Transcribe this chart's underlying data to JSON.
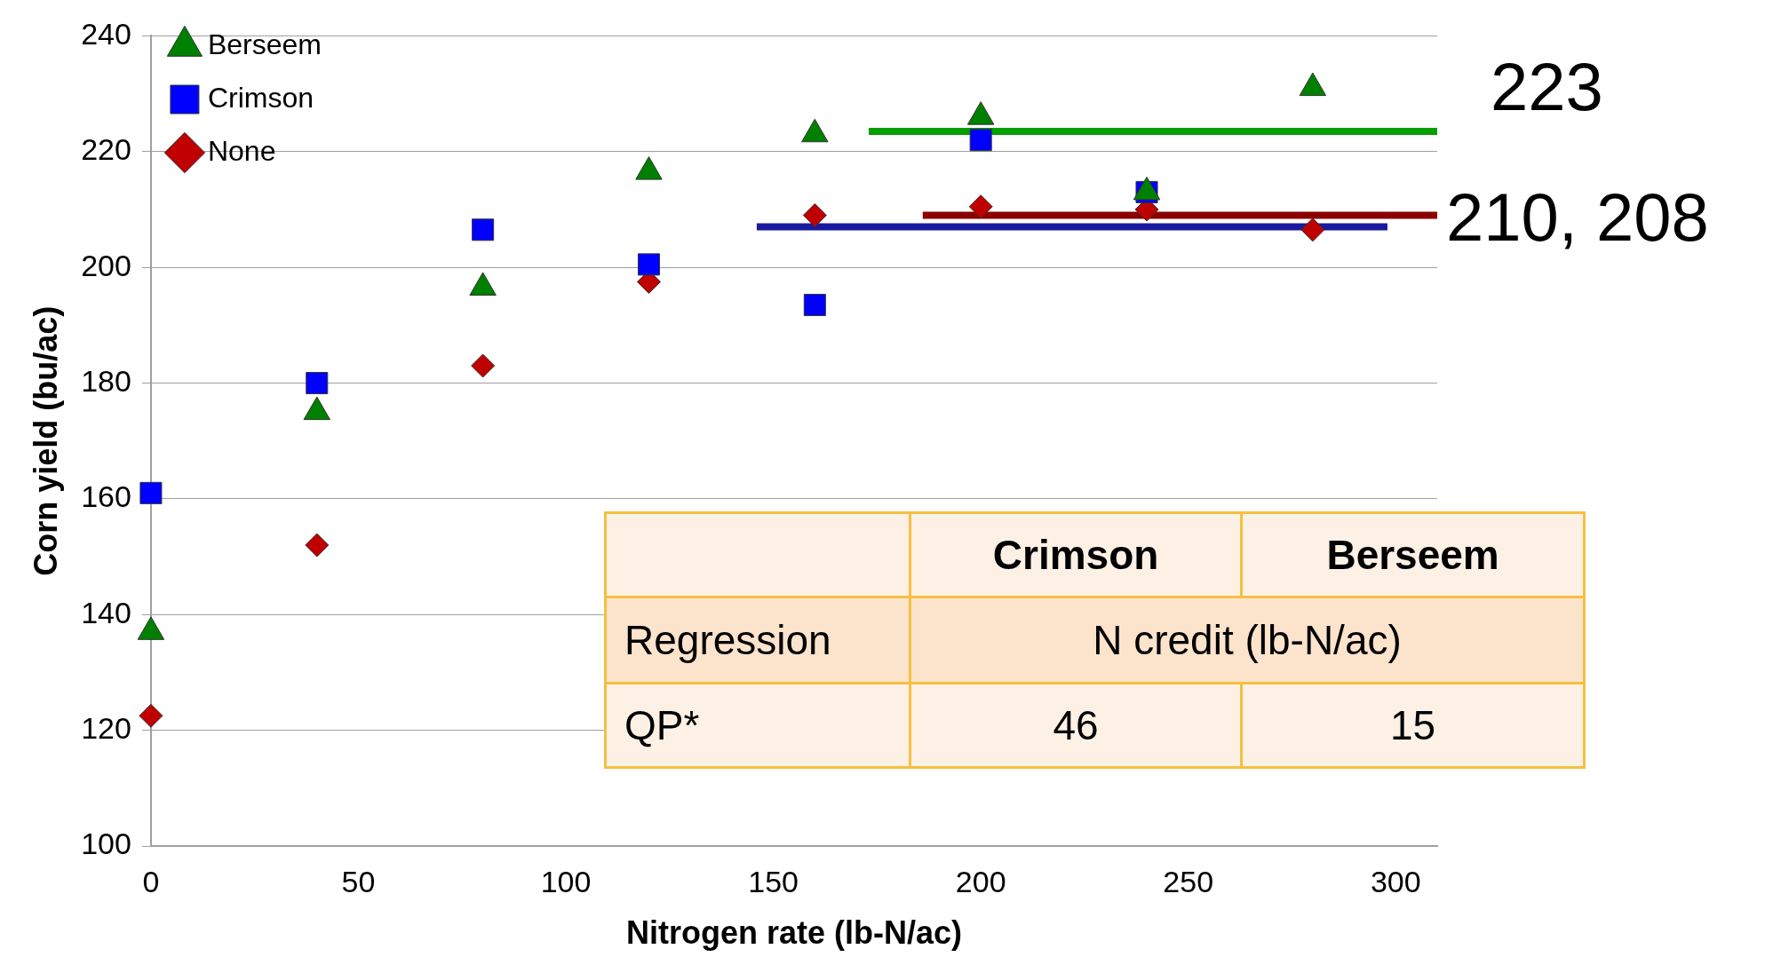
{
  "chart_data": {
    "type": "scatter",
    "xlabel": "Nitrogen rate (lb-N/ac)",
    "ylabel": "Corn yield (bu/ac)",
    "xlim": [
      0,
      310
    ],
    "xticks": [
      0,
      50,
      100,
      150,
      200,
      250,
      300
    ],
    "ylim": [
      100,
      240
    ],
    "yticks": [
      100,
      120,
      140,
      160,
      180,
      200,
      220,
      240
    ],
    "grid": "y",
    "legend": "top left",
    "x": [
      0,
      40,
      80,
      120,
      160,
      200,
      240,
      280
    ],
    "series": [
      {
        "name": "None",
        "color": "#c00000",
        "marker": "diamond",
        "values": [
          122.5,
          152,
          183,
          197.5,
          209,
          210.5,
          210,
          206.5
        ]
      },
      {
        "name": "Crimson",
        "color": "#0000ff",
        "marker": "square",
        "values": [
          161,
          180,
          206.5,
          200.5,
          193.5,
          222,
          213,
          null
        ]
      },
      {
        "name": "Berseem",
        "color": "#008000",
        "marker": "triangle",
        "values": [
          137,
          175,
          196.5,
          216.5,
          223,
          226,
          213,
          231
        ]
      },
      {
        "type": "line",
        "color": "#00a000",
        "x": [
          173,
          310
        ],
        "values": [
          223.5,
          223.5
        ]
      },
      {
        "type": "line",
        "color": "#8b0000",
        "x": [
          186,
          310
        ],
        "values": [
          209,
          209
        ]
      },
      {
        "type": "line",
        "color": "#1a1aa0",
        "x": [
          146,
          298
        ],
        "values": [
          207,
          207
        ]
      }
    ],
    "annotations": [
      "223",
      "210, 208",
      "Crimson",
      "Berseem",
      "Regression",
      "N credit (lb-N/ac)",
      "QP*",
      "46",
      "15"
    ]
  }
}
